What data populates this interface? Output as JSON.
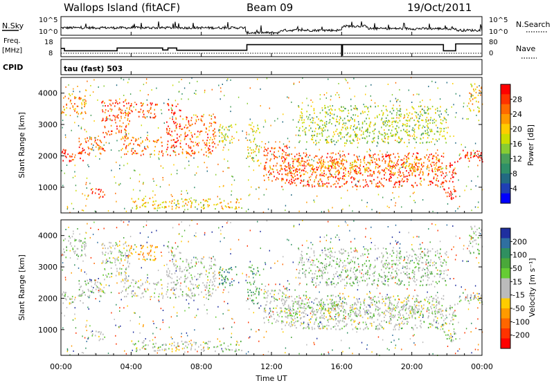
{
  "header": {
    "station": "Wallops Island (fitACF)",
    "beam": "Beam 09",
    "date": "19/Oct/2011"
  },
  "panels": {
    "nsky_label": "N.Sky",
    "nsearch_label": "N.Search",
    "freq_label_top": "Freq.",
    "freq_label_unit": "[MHz]",
    "nave_label": "Nave",
    "cpid_label": "CPID",
    "cpid_text": "tau (fast) 503",
    "nsky_ticks": [
      "10^5",
      "10^0"
    ],
    "nsearch_ticks": [
      "10^5",
      "10^0"
    ],
    "freq_ticks": [
      "18",
      "8"
    ],
    "nave_ticks": [
      "80",
      "0"
    ]
  },
  "axes": {
    "ylabel": "Slant Range [km]",
    "xlabel": "Time UT",
    "y_ticks": [
      "4000",
      "3000",
      "2000",
      "1000"
    ],
    "x_ticks": [
      "00:00",
      "04:00",
      "08:00",
      "12:00",
      "16:00",
      "20:00",
      "00:00"
    ]
  },
  "colorbars": {
    "power": {
      "label": "Power [dB]",
      "ticks": [
        "28",
        "24",
        "20",
        "16",
        "12",
        "8",
        "4"
      ],
      "colors": [
        "#ff0000",
        "#ff3300",
        "#ff6a00",
        "#ff9a00",
        "#ffcc00",
        "#ccdd00",
        "#88cc33",
        "#4aa05a",
        "#2f8f68",
        "#226a82",
        "#1f3fb4",
        "#0000ff"
      ]
    },
    "velocity": {
      "label": "Velocity [m s⁻¹]",
      "ticks": [
        "200",
        "100",
        "50",
        "15",
        "-15",
        "-50",
        "-100",
        "-200"
      ],
      "colors": [
        "#1f2f9f",
        "#2f6fa0",
        "#2f8f60",
        "#4aa83a",
        "#66cc33",
        "#bbbbbb",
        "#bbbbbb",
        "#ffcc00",
        "#ff9a00",
        "#ff6600",
        "#ff3300",
        "#ff0000"
      ]
    }
  },
  "chart_data": {
    "type": "heatmap",
    "x_range_hours": [
      0,
      24
    ],
    "y_range_km": [
      180,
      4500
    ],
    "freq_steps": [
      {
        "t0": 0,
        "t1": 0.2,
        "freq": 12.5
      },
      {
        "t0": 0.2,
        "t1": 3.2,
        "freq": 11.0
      },
      {
        "t0": 3.2,
        "t1": 5.8,
        "freq": 12.8
      },
      {
        "t0": 5.8,
        "t1": 6.1,
        "freq": 11.5
      },
      {
        "t0": 6.1,
        "t1": 6.6,
        "freq": 12.8
      },
      {
        "t0": 6.6,
        "t1": 10.6,
        "freq": 11.3
      },
      {
        "t0": 10.6,
        "t1": 16.0,
        "freq": 15.0
      },
      {
        "t0": 16.0,
        "t1": 16.05,
        "freq": 8.0
      },
      {
        "t0": 16.05,
        "t1": 21.8,
        "freq": 15.0
      },
      {
        "t0": 21.8,
        "t1": 22.5,
        "freq": 11.0
      },
      {
        "t0": 22.5,
        "t1": 24.0,
        "freq": 15.5
      }
    ],
    "nsky_levels": [
      {
        "t0": 0,
        "t1": 10.5,
        "level": 0.45
      },
      {
        "t0": 10.5,
        "t1": 12.5,
        "level": 0.15
      },
      {
        "t0": 12.5,
        "t1": 16.0,
        "level": 0.3
      },
      {
        "t0": 16.0,
        "t1": 17.5,
        "level": 0.55
      },
      {
        "t0": 17.5,
        "t1": 22.5,
        "level": 0.4
      },
      {
        "t0": 22.5,
        "t1": 24.0,
        "level": 0.3
      }
    ],
    "regions": [
      {
        "t0": 0.0,
        "t1": 1.3,
        "r0": 1800,
        "r1": 2200,
        "power": 27,
        "vel": 0
      },
      {
        "t0": 1.0,
        "t1": 2.6,
        "r0": 2000,
        "r1": 2600,
        "power": 24,
        "vel": 0
      },
      {
        "t0": 2.3,
        "t1": 3.9,
        "r0": 2600,
        "r1": 3800,
        "power": 24,
        "vel": 0
      },
      {
        "t0": 0.0,
        "t1": 1.4,
        "r0": 3300,
        "r1": 4000,
        "power": 20,
        "vel": 5
      },
      {
        "t0": 3.4,
        "t1": 5.8,
        "r0": 2000,
        "r1": 2600,
        "power": 22,
        "vel": -10
      },
      {
        "t0": 3.8,
        "t1": 5.5,
        "r0": 3200,
        "r1": 3700,
        "power": 24,
        "vel": -60
      },
      {
        "t0": 6.0,
        "t1": 6.8,
        "r0": 2000,
        "r1": 3700,
        "power": 26,
        "vel": 0
      },
      {
        "t0": 6.8,
        "t1": 8.8,
        "r0": 2000,
        "r1": 3300,
        "power": 23,
        "vel": 0
      },
      {
        "t0": 1.5,
        "t1": 2.5,
        "r0": 650,
        "r1": 950,
        "power": 26,
        "vel": 0
      },
      {
        "t0": 4.0,
        "t1": 10.3,
        "r0": 300,
        "r1": 650,
        "power": 18,
        "vel": 0
      },
      {
        "t0": 11.5,
        "t1": 13.0,
        "r0": 1200,
        "r1": 2300,
        "power": 24,
        "vel": 0
      },
      {
        "t0": 12.5,
        "t1": 21.8,
        "r0": 1000,
        "r1": 2100,
        "power": 25,
        "vel": 0
      },
      {
        "t0": 13.0,
        "t1": 21.8,
        "r0": 1400,
        "r1": 1900,
        "power": 20,
        "vel": 0
      },
      {
        "t0": 21.8,
        "t1": 22.5,
        "r0": 600,
        "r1": 1800,
        "power": 28,
        "vel": 0
      },
      {
        "t0": 22.5,
        "t1": 24.0,
        "r0": 1800,
        "r1": 2200,
        "power": 27,
        "vel": 0
      },
      {
        "t0": 23.2,
        "t1": 24.0,
        "r0": 3400,
        "r1": 4300,
        "power": 18,
        "vel": 10
      },
      {
        "t0": 9.0,
        "t1": 10.0,
        "r0": 2400,
        "r1": 3000,
        "power": 14,
        "vel": 60
      },
      {
        "t0": 10.6,
        "t1": 11.3,
        "r0": 1800,
        "r1": 3000,
        "power": 16,
        "vel": 40
      },
      {
        "t0": 13.5,
        "t1": 22.0,
        "r0": 2400,
        "r1": 3600,
        "power": 14,
        "vel": 10
      }
    ]
  }
}
